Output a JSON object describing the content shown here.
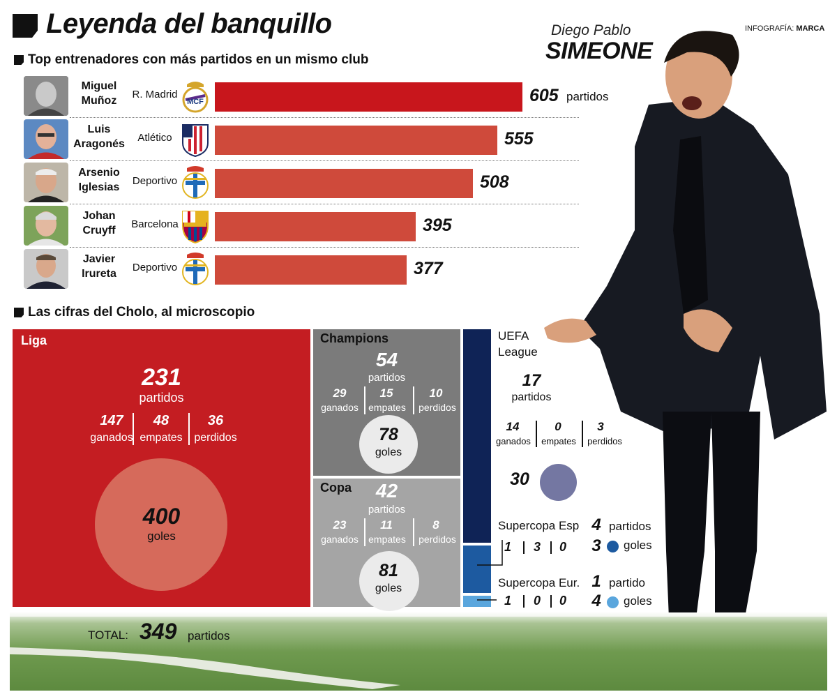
{
  "header": {
    "title": "Leyenda del banquillo",
    "credit_prefix": "INFOGRAFÍA:",
    "credit_brand": "MARCA",
    "coach_first": "Diego Pablo",
    "coach_last": "SIMEONE"
  },
  "sections": {
    "ranking": "Top entrenadores con más partidos en un mismo club",
    "figures": "Las cifras del Cholo, al microscopio"
  },
  "colors": {
    "bar_first": "#c8161c",
    "bar_rest": "#cf4a3b",
    "liga": "#c41d22",
    "liga_circle": "#d66a5b",
    "champions": "#7b7b7b",
    "copa": "#a5a5a5",
    "uefa": "#0f2356",
    "supercopa_esp": "#1d5aa0",
    "supercopa_eur": "#5aa6dd",
    "uefa_goals_circle": "#7477a2"
  },
  "chart_data": {
    "type": "bar",
    "title": "Top entrenadores con más partidos en un mismo club",
    "unit": "partidos",
    "categories": [
      "Miguel Muñoz",
      "Luis Aragonés",
      "Arsenio Iglesias",
      "Johan Cruyff",
      "Javier Irureta"
    ],
    "values": [
      605,
      555,
      508,
      395,
      377
    ],
    "rows": [
      {
        "name_line1": "Miguel",
        "name_line2": "Muñoz",
        "club": "R. Madrid",
        "crest": "real-madrid-crest",
        "value": 605
      },
      {
        "name_line1": "Luis",
        "name_line2": "Aragonés",
        "club": "Atlético",
        "crest": "atletico-crest",
        "value": 555
      },
      {
        "name_line1": "Arsenio",
        "name_line2": "Iglesias",
        "club": "Deportivo",
        "crest": "deportivo-crest",
        "value": 508
      },
      {
        "name_line1": "Johan",
        "name_line2": "Cruyff",
        "club": "Barcelona",
        "crest": "barcelona-crest",
        "value": 395
      },
      {
        "name_line1": "Javier",
        "name_line2": "Irureta",
        "club": "Deportivo",
        "crest": "deportivo-crest",
        "value": 377
      }
    ],
    "xlim": [
      0,
      605
    ]
  },
  "stats": {
    "labels": {
      "partidos": "partidos",
      "partido": "partido",
      "ganados": "ganados",
      "empates": "empates",
      "perdidos": "perdidos",
      "goles": "goles"
    },
    "liga": {
      "title": "Liga",
      "matches": 231,
      "won": 147,
      "drawn": 48,
      "lost": 36,
      "goals": 400
    },
    "champions": {
      "title": "Champions",
      "matches": 54,
      "won": 29,
      "drawn": 15,
      "lost": 10,
      "goals": 78
    },
    "copa": {
      "title": "Copa",
      "matches": 42,
      "won": 23,
      "drawn": 11,
      "lost": 8,
      "goals": 81
    },
    "uefa": {
      "title_line1": "UEFA",
      "title_line2": "League",
      "matches": 17,
      "won": 14,
      "drawn": 0,
      "lost": 3,
      "goals": 30
    },
    "supercopa_esp": {
      "title": "Supercopa Esp",
      "matches": 4,
      "won": 1,
      "drawn": 3,
      "lost": 0,
      "goals": 3
    },
    "supercopa_eur": {
      "title": "Supercopa Eur.",
      "matches": 1,
      "won": 1,
      "drawn": 0,
      "lost": 0,
      "goals": 4
    },
    "total": {
      "label": "TOTAL:",
      "matches": 349,
      "unit": "partidos"
    }
  }
}
